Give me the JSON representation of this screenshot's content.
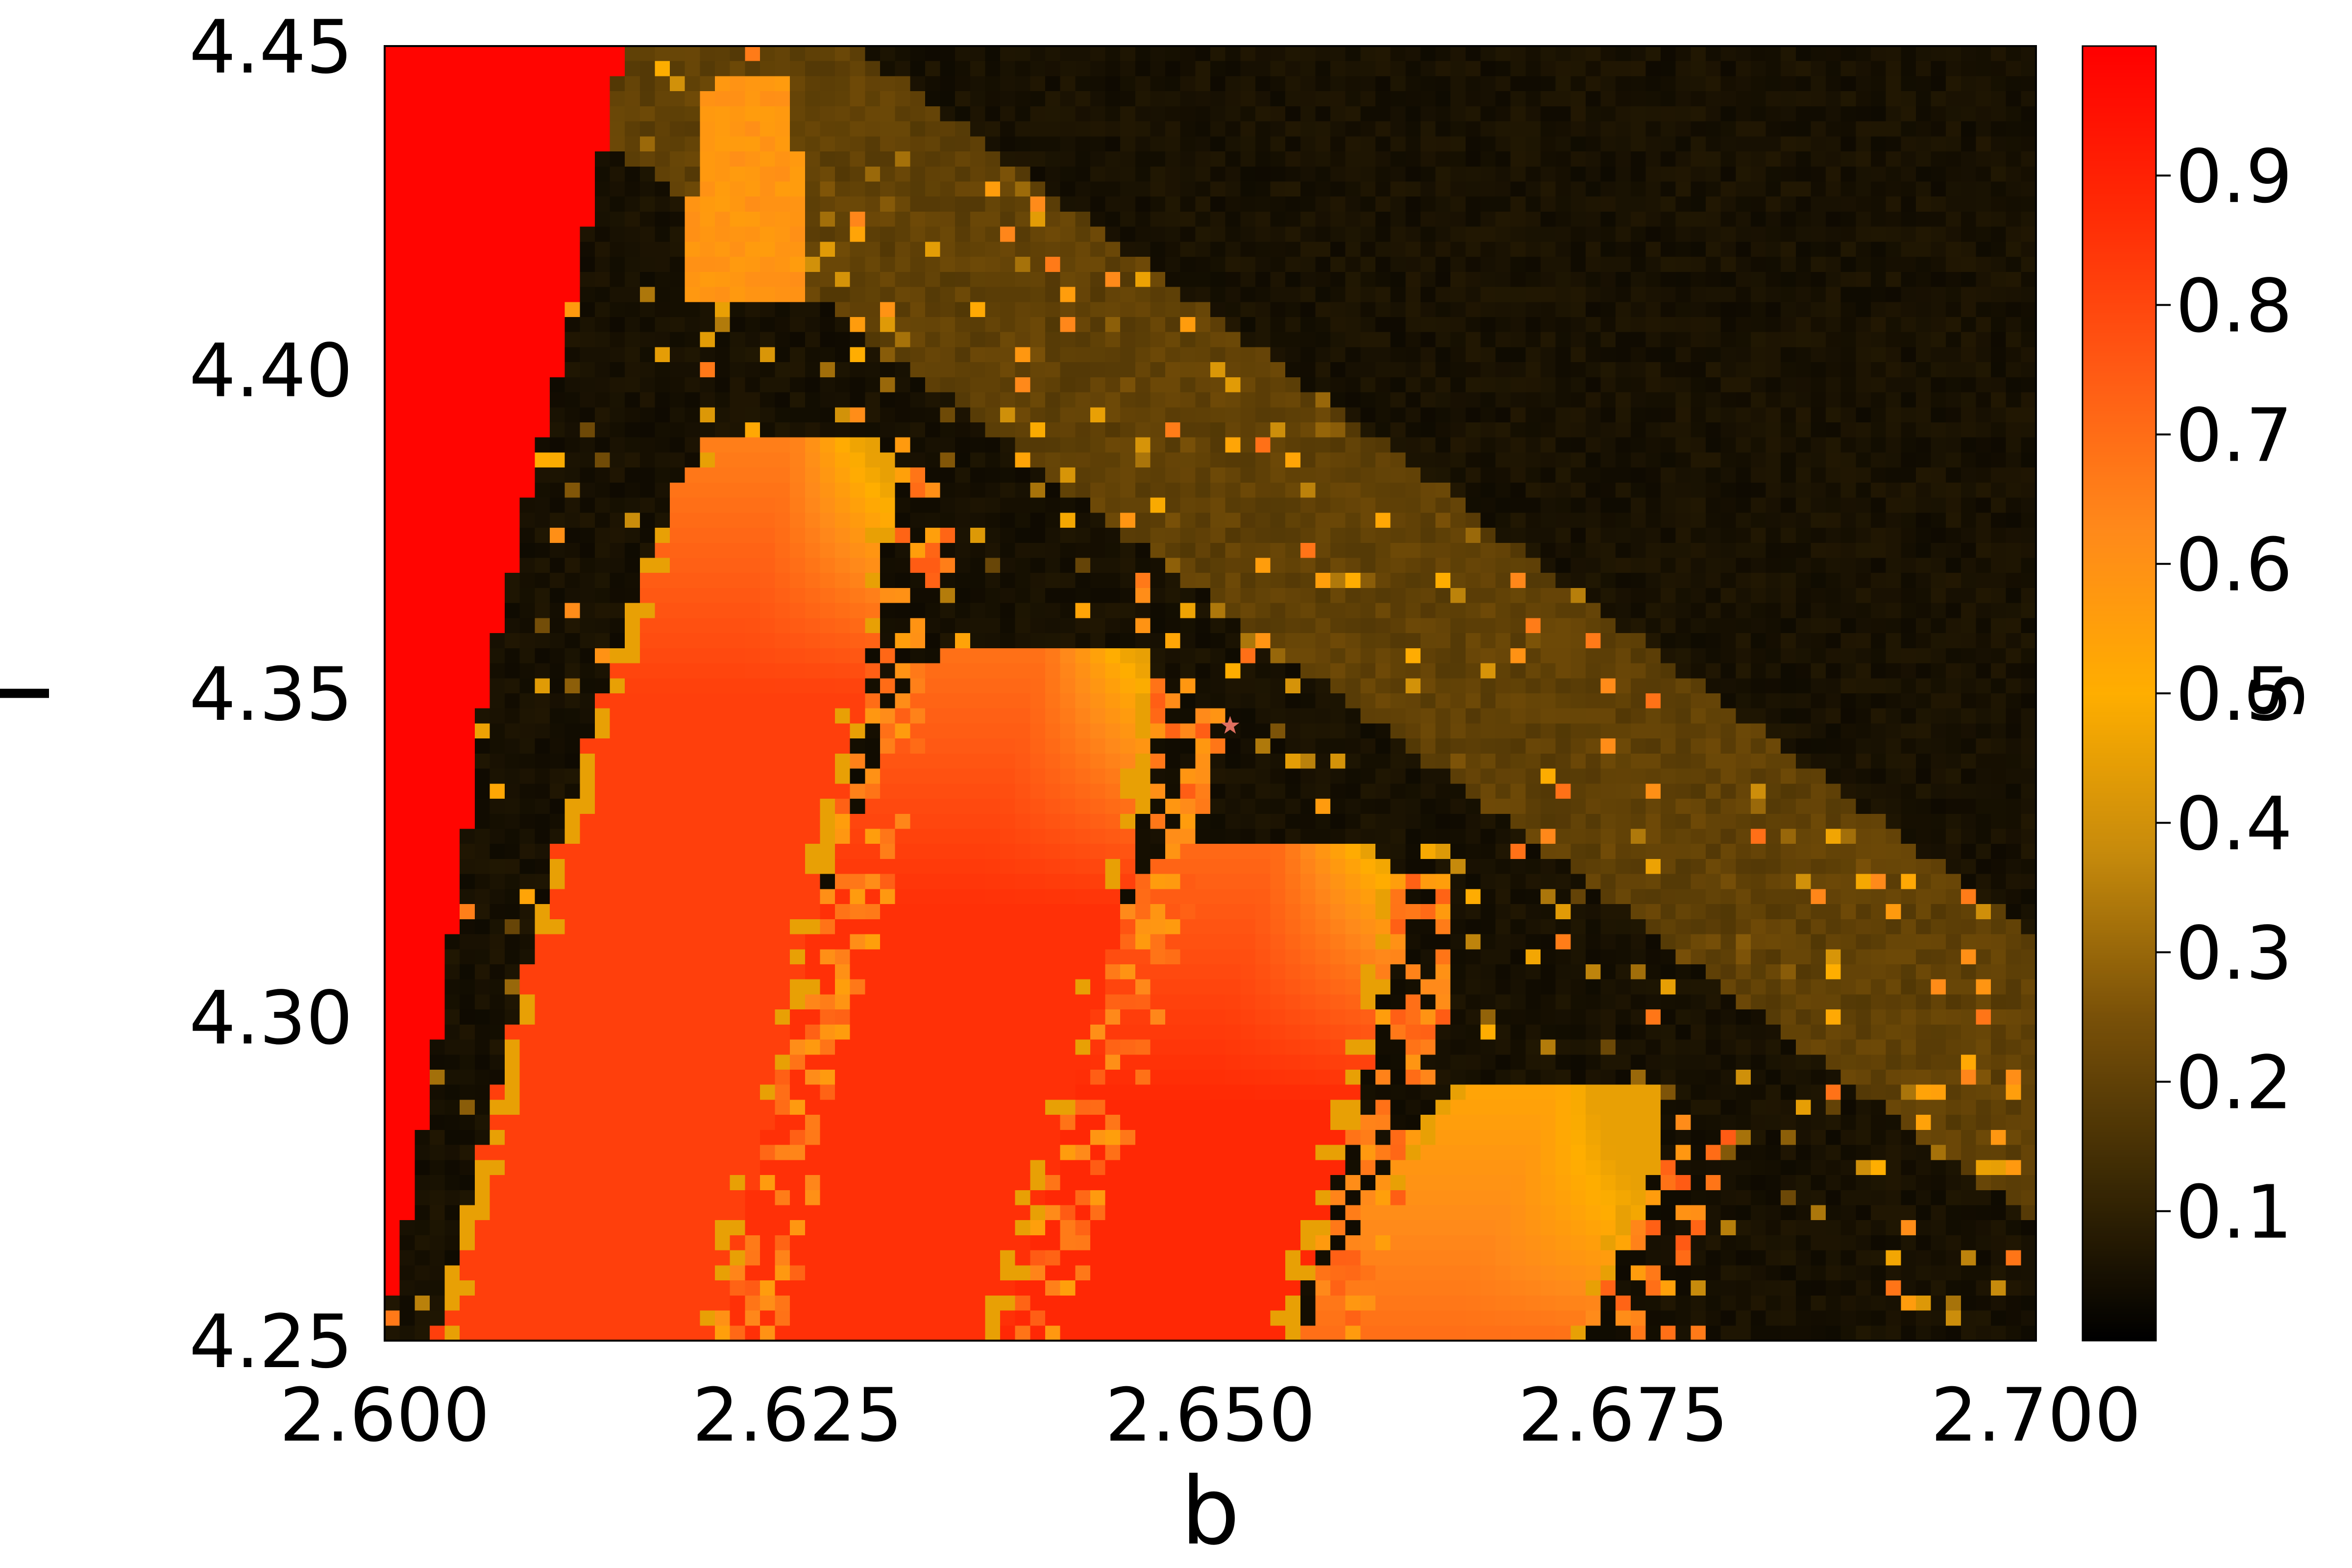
{
  "chart_data": {
    "type": "heatmap",
    "xlabel": "b",
    "ylabel": "I",
    "xlim": [
      2.6,
      2.7
    ],
    "ylim": [
      4.25,
      4.45
    ],
    "x_ticks": [
      2.6,
      2.625,
      2.65,
      2.675,
      2.7
    ],
    "x_tick_labels": [
      "2.600",
      "2.625",
      "2.650",
      "2.675",
      "2.700"
    ],
    "y_ticks": [
      4.25,
      4.3,
      4.35,
      4.4,
      4.45
    ],
    "y_tick_labels": [
      "4.25",
      "4.30",
      "4.35",
      "4.40",
      "4.45"
    ],
    "colorbar": {
      "range": [
        0.0,
        1.0
      ],
      "ticks": [
        0.1,
        0.2,
        0.3,
        0.4,
        0.5,
        0.6,
        0.7,
        0.8,
        0.9
      ],
      "tick_labels": [
        "0.1",
        "0.2",
        "0.3",
        "0.4",
        "0.5",
        "0.6",
        "0.7",
        "0.8",
        "0.9"
      ],
      "label": "S",
      "colormap": [
        "#000000",
        "#3c2a04",
        "#7a5108",
        "#c68a0c",
        "#ffae00",
        "#ff8a1a",
        "#ff5a14",
        "#ff2a05",
        "#ff0000"
      ]
    },
    "grid": false,
    "marker": {
      "b": 2.6512,
      "I": 4.345,
      "symbol": "star",
      "color": "#e07060"
    },
    "regions": {
      "red_wedge_left_boundary": [
        [
          4.25,
          2.6
        ],
        [
          4.3,
          2.6035
        ],
        [
          4.35,
          2.606
        ],
        [
          4.4,
          2.6105
        ],
        [
          4.45,
          2.6145
        ]
      ],
      "bands": [
        {
          "center_b_at_4.25": 2.6115,
          "center_b_at_top": 2.6245,
          "top_I": 4.385,
          "half_width": 0.0085,
          "value": 0.82
        },
        {
          "center_b_at_4.25": 2.628,
          "center_b_at_top": 2.6395,
          "top_I": 4.352,
          "half_width": 0.0095,
          "value": 0.86
        },
        {
          "center_b_at_4.25": 2.6455,
          "center_b_at_top": 2.6535,
          "top_I": 4.322,
          "half_width": 0.0095,
          "value": 0.88
        },
        {
          "center_b_at_4.25": 2.664,
          "center_b_at_top": 2.6705,
          "top_I": 4.285,
          "half_width": 0.0085,
          "value": 0.7
        }
      ],
      "upper_orange_lobe": {
        "b": 2.622,
        "I_range": [
          4.41,
          4.44
        ],
        "value": 0.56
      },
      "diagonal_band": {
        "from": [
          2.625,
          4.435
        ],
        "to": [
          2.7,
          4.29
        ],
        "half_width_I": 0.022,
        "value": 0.2
      }
    }
  }
}
